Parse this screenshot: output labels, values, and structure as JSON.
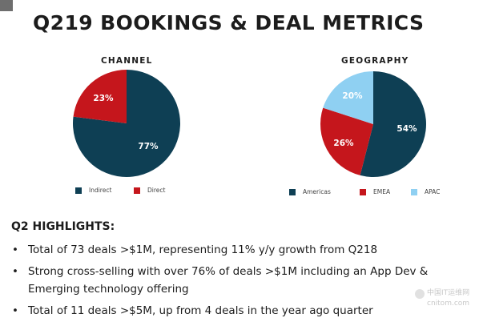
{
  "title": "Q219 BOOKINGS & DEAL METRICS",
  "chart_data": [
    {
      "type": "pie",
      "title": "CHANNEL",
      "categories": [
        "Indirect",
        "Direct"
      ],
      "values": [
        77,
        23
      ],
      "labels": [
        "77%",
        "23%"
      ],
      "colors": [
        "#0e3f54",
        "#c5161c"
      ],
      "legend_position": "bottom"
    },
    {
      "type": "pie",
      "title": "GEOGRAPHY",
      "categories": [
        "Americas",
        "EMEA",
        "APAC"
      ],
      "values": [
        54,
        26,
        20
      ],
      "labels": [
        "54%",
        "26%",
        "20%"
      ],
      "colors": [
        "#0e3f54",
        "#c5161c",
        "#8fd0f2"
      ],
      "legend_position": "bottom"
    }
  ],
  "highlights": {
    "heading": "Q2 HIGHLIGHTS:",
    "items": [
      {
        "lines": [
          "Total of 73 deals >$1M, representing 11% y/y growth from Q218"
        ]
      },
      {
        "lines": [
          "Strong cross-selling with over 76% of deals >$1M including an App Dev &",
          "Emerging technology offering"
        ]
      },
      {
        "lines": [
          "Total of 11 deals >$5M, up from 4 deals in the year ago quarter"
        ]
      }
    ]
  },
  "watermark": {
    "line1": "中国IT运维网",
    "line2": "cnitom.com"
  }
}
